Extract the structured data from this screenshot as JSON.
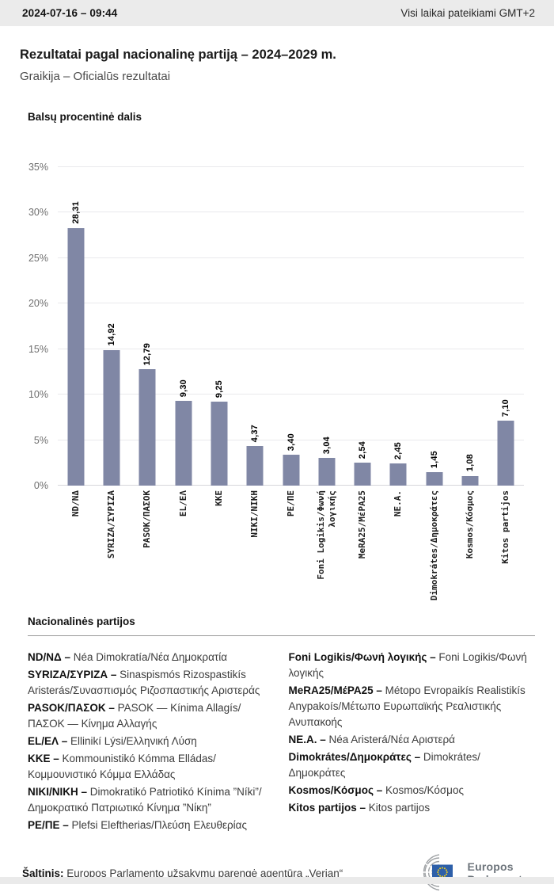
{
  "header": {
    "datetime": "2024-07-16 – 09:44",
    "timezone_note": "Visi laikai pateikiami GMT+2"
  },
  "title": "Rezultatai pagal nacionalinę partiją – 2024–2029 m.",
  "subtitle": "Graikija – Oficialūs rezultatai",
  "chart_data": {
    "type": "bar",
    "title": "Balsų procentinė dalis",
    "categories": [
      "ND/ΝΔ",
      "SYRIZA/ΣΥΡΙΖΑ",
      "PASOK/ΠΑΣΟΚ",
      "EL/ΕΛ",
      "KKE",
      "NIKI/ΝΙΚΗ",
      "PE/ΠΕ",
      "Foni Logikis/Φωνή\nλογικής",
      "MeRA25/ΜέΡΑ25",
      "NE.A.",
      "Dimokrátes/Δημοκράτες",
      "Kosmos/Κόσμος",
      "Kitos partijos"
    ],
    "values": [
      28.31,
      14.92,
      12.79,
      9.3,
      9.25,
      4.37,
      3.4,
      3.04,
      2.54,
      2.45,
      1.45,
      1.08,
      7.1
    ],
    "value_labels": [
      "28,31",
      "14,92",
      "12,79",
      "9,30",
      "9,25",
      "4,37",
      "3,40",
      "3,04",
      "2,54",
      "2,45",
      "1,45",
      "1,08",
      "7,10"
    ],
    "xlabel": "",
    "ylabel": "",
    "ylim": [
      0,
      35
    ],
    "yticks": [
      "0%",
      "5%",
      "10%",
      "15%",
      "20%",
      "25%",
      "30%",
      "35%"
    ],
    "grid": true,
    "legend_position": "none",
    "bar_color": "#8087a5"
  },
  "legend": {
    "heading": "Nacionalinės partijos",
    "columns": [
      [
        {
          "term": "ND/ΝΔ –",
          "desc": "Néa Dimokratía/Νέα Δημοκρατία"
        },
        {
          "term": "SYRIZA/ΣΥΡΙΖΑ –",
          "desc": "Sinaspismós Rizospastikís Aristerás/Συνασπισμός Ριζοσπαστικής Αριστεράς"
        },
        {
          "term": "PASOK/ΠΑΣΟΚ –",
          "desc": "PASOK — Kínima Allagís/ΠΑΣΟΚ — Κίνημα Αλλαγής"
        },
        {
          "term": "EL/ΕΛ –",
          "desc": "Ellinikí Lýsi/Ελληνική Λύση"
        },
        {
          "term": "KKE –",
          "desc": "Kommounistikó Kómma Elládas/Κομμουνιστικό Κόμμα Ελλάδας"
        },
        {
          "term": "NIKI/ΝΙΚΗ –",
          "desc": "Dimokratikó Patriotikó Kínima ”Níki”/Δημοκρατικό Πατριωτικό Κίνημα ”Νίκη”"
        },
        {
          "term": "PE/ΠΕ –",
          "desc": "Plefsi Eleftherias/Πλεύση Ελευθερίας"
        }
      ],
      [
        {
          "term": "Foni Logikis/Φωνή λογικής –",
          "desc": "Foni Logikis/Φωνή λογικής"
        },
        {
          "term": "MeRA25/ΜέΡΑ25 –",
          "desc": "Métopo Evropaikís Realistikís Anypakoís/Μέτωπο Ευρωπαϊκής Ρεαλιστικής Ανυπακοής"
        },
        {
          "term": "NE.A. –",
          "desc": "Néa Aristerá/Νέα Αριστερά"
        },
        {
          "term": "Dimokrátes/Δημοκράτες –",
          "desc": "Dimokrátes/Δημοκράτες"
        },
        {
          "term": "Kosmos/Κόσμος –",
          "desc": "Kosmos/Κόσμος"
        },
        {
          "term": "Kitos partijos –",
          "desc": "Kitos partijos"
        }
      ]
    ]
  },
  "footer": {
    "source_label": "Šaltinis:",
    "source_text": "Europos Parlamento užsakymu parengė agentūra „Verian“",
    "logo": {
      "line1": "Europos",
      "line2": "Parlamentas",
      "flag_blue": "#2d5fa9",
      "star_yellow": "#f7d117"
    }
  }
}
